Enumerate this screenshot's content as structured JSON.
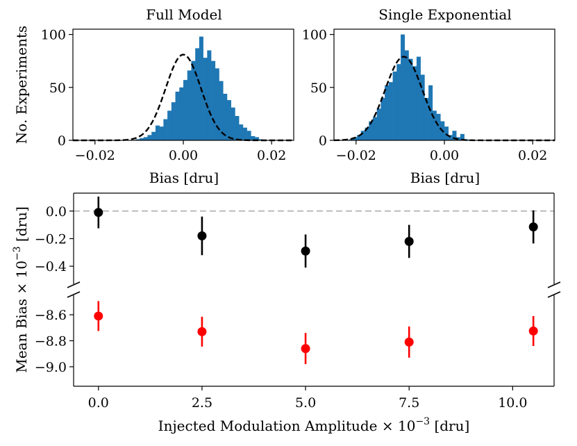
{
  "chart_data": [
    {
      "type": "histogram",
      "title": "Full Model",
      "xlabel": "Bias [dru]",
      "ylabel": "No. Experiments",
      "xlim": [
        -0.025,
        0.025
      ],
      "ylim": [
        0,
        105
      ],
      "xticks": [
        -0.02,
        0.0,
        0.02
      ],
      "xtick_labels": [
        "−0.02",
        "0.00",
        "0.02"
      ],
      "yticks": [
        0,
        50,
        100
      ],
      "ytick_labels": [
        "0",
        "50",
        "100"
      ],
      "bin_start": -0.0108,
      "bin_width": 0.0009,
      "counts": [
        1,
        2,
        3,
        5,
        8,
        14,
        13,
        20,
        28,
        36,
        46,
        50,
        57,
        66,
        75,
        87,
        98,
        78,
        85,
        75,
        68,
        56,
        44,
        38,
        31,
        23,
        15,
        12,
        9,
        4,
        3,
        1
      ],
      "fit": {
        "type": "gaussian",
        "mu": 0.0,
        "sigma": 0.004,
        "amplitude": 81
      },
      "bar_color": "#1f77b4"
    },
    {
      "type": "histogram",
      "title": "Single Exponential",
      "xlabel": "Bias [dru]",
      "xlim": [
        -0.025,
        0.025
      ],
      "ylim": [
        0,
        105
      ],
      "xticks": [
        -0.02,
        0.0,
        0.02
      ],
      "xtick_labels": [
        "−0.02",
        "0.00",
        "0.02"
      ],
      "yticks": [
        0,
        50,
        100
      ],
      "ytick_labels": [
        "0",
        "50",
        "100"
      ],
      "bin_start": -0.0216,
      "bin_width": 0.0009,
      "counts": [
        1,
        3,
        5,
        9,
        12,
        18,
        22,
        30,
        40,
        52,
        55,
        65,
        72,
        100,
        85,
        77,
        70,
        79,
        62,
        40,
        52,
        28,
        25,
        18,
        13,
        5,
        9,
        3,
        6,
        1
      ],
      "fit": {
        "type": "gaussian",
        "mu": -0.0092,
        "sigma": 0.0042,
        "amplitude": 79
      },
      "bar_color": "#1f77b4"
    },
    {
      "type": "scatter",
      "xlabel_main": "Injected Modulation Amplitude × 10",
      "xlabel_exp": "−3",
      "xlabel_tail": " [dru]",
      "ylabel_main": "Mean Bias × 10",
      "ylabel_exp": "−3",
      "ylabel_tail": " [dru]",
      "xlim": [
        -0.6,
        11.0
      ],
      "xticks": [
        0.0,
        2.5,
        5.0,
        7.5,
        10.0
      ],
      "xtick_labels": [
        "0.0",
        "2.5",
        "5.0",
        "7.5",
        "10.0"
      ],
      "broken_y_axis": true,
      "upper_segment": {
        "ylim": [
          -0.53,
          0.13
        ],
        "yticks": [
          0.0,
          -0.2,
          -0.4
        ],
        "ytick_labels": [
          "0.0",
          "−0.2",
          "−0.4"
        ],
        "reference_line": 0.0
      },
      "lower_segment": {
        "ylim": [
          -9.15,
          -8.45
        ],
        "yticks": [
          -8.6,
          -8.8,
          -9.0
        ],
        "ytick_labels": [
          "−8.6",
          "−8.8",
          "−9.0"
        ]
      },
      "series": [
        {
          "name": "Full Model",
          "color": "#000000",
          "x": [
            0.0,
            2.5,
            5.0,
            7.5,
            10.5
          ],
          "y": [
            -0.01,
            -0.18,
            -0.29,
            -0.22,
            -0.115
          ],
          "yerr": [
            0.115,
            0.14,
            0.12,
            0.12,
            0.12
          ]
        },
        {
          "name": "Single Exponential",
          "color": "#ff0000",
          "x": [
            0.0,
            2.5,
            5.0,
            7.5,
            10.5
          ],
          "y": [
            -8.61,
            -8.73,
            -8.86,
            -8.81,
            -8.725
          ],
          "yerr": [
            0.115,
            0.115,
            0.12,
            0.12,
            0.115
          ]
        }
      ]
    }
  ]
}
